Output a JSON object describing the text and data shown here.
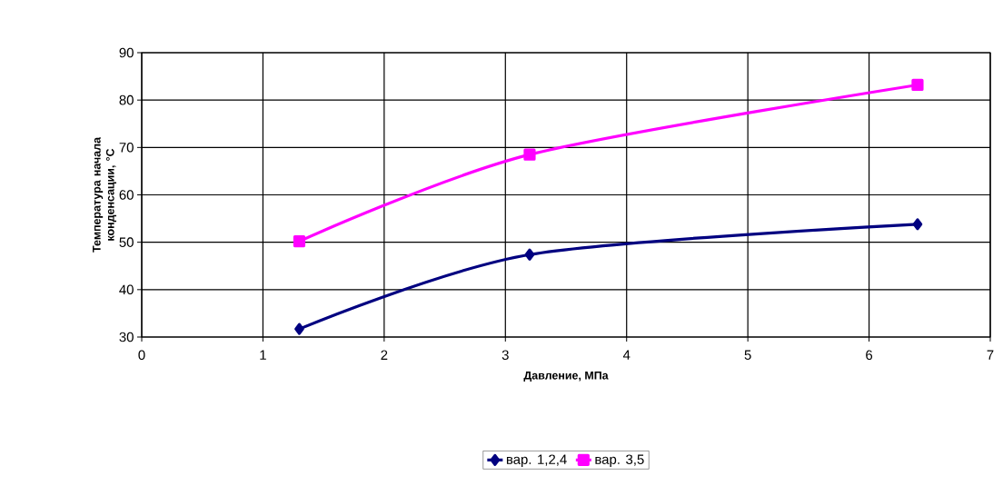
{
  "chart_data": {
    "type": "line",
    "xlabel": "Давление, МПа",
    "ylabel": "Температура начала конденсации, °С",
    "x": [
      1.3,
      3.2,
      6.4
    ],
    "series": [
      {
        "name": "вар. 1,2,4",
        "color": "#000080",
        "values": [
          31.7,
          47.4,
          53.8
        ],
        "marker": "diamond"
      },
      {
        "name": "вар. 3,5",
        "color": "#ff00ff",
        "values": [
          50.2,
          68.5,
          83.2
        ],
        "marker": "square"
      }
    ],
    "xlim": [
      0,
      7
    ],
    "ylim": [
      30,
      90
    ],
    "xticks": [
      0,
      1,
      2,
      3,
      4,
      5,
      6,
      7
    ],
    "yticks": [
      30,
      40,
      50,
      60,
      70,
      80,
      90
    ],
    "grid": true,
    "legend": "bottom",
    "line_style": "solid"
  }
}
